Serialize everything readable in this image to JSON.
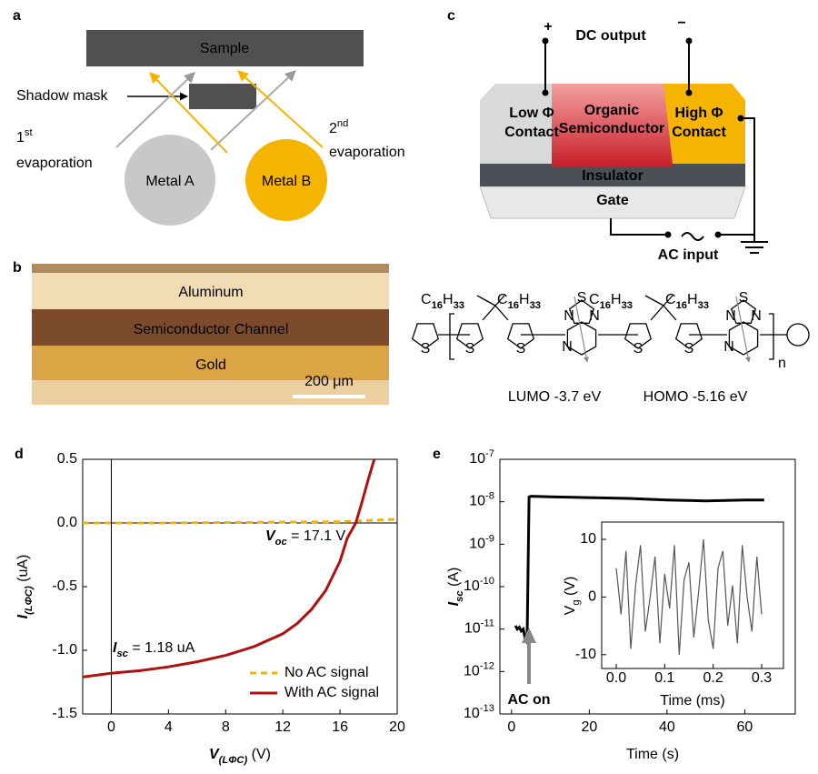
{
  "panel_a": {
    "letter": "a",
    "sample": "Sample",
    "shadow_mask": "Shadow mask",
    "first": {
      "number": "1",
      "suffix": "st",
      "text": "evaporation"
    },
    "second": {
      "number": "2",
      "suffix": "nd",
      "text": "evaporation"
    },
    "metal_a": "Metal A",
    "metal_b": "Metal B"
  },
  "panel_b": {
    "letter": "b",
    "top": "Aluminum",
    "middle": "Semiconductor  Channel",
    "bottom": "Gold",
    "scale_bar": "200 μm"
  },
  "panel_c": {
    "letter": "c",
    "plus": "+",
    "minus": "−",
    "dc_output": "DC output",
    "low_contact": [
      "Low Φ",
      "Contact"
    ],
    "organic": [
      "Organic",
      "Semiconductor"
    ],
    "high_contact": [
      "High Φ",
      "Contact"
    ],
    "insulator": "Insulator",
    "gate": "Gate",
    "ac_input": "AC input"
  },
  "molecule": {
    "side_chain": {
      "element1": "C",
      "count1": "16",
      "element2": "H",
      "count2": "33"
    },
    "sulfur": "S",
    "nitrogen": "N",
    "repeat": "n",
    "lumo": "LUMO -3.7 eV",
    "homo": "HOMO -5.16 eV"
  },
  "chart_data": [
    {
      "type": "line",
      "panel": "d",
      "xlabel": {
        "text": "V",
        "sub": "(LΦC)",
        "unit": " (V)"
      },
      "ylabel": {
        "text": "I",
        "sub": "(LΦC)",
        "unit": " (uA)"
      },
      "xlim": [
        -2,
        20
      ],
      "xticks": [
        0,
        4,
        8,
        12,
        16,
        20
      ],
      "ylim": [
        -1.5,
        0.5
      ],
      "yticks": [
        -1.5,
        {
          "value": -1,
          "label": "-1.0"
        },
        -0.5,
        {
          "value": 0,
          "label": "0.0"
        },
        0.5
      ],
      "zero_lines": true,
      "legend": "lower right",
      "annotations": [
        {
          "text": "V",
          "sub": "oc",
          "rest": " = 17.1 V"
        },
        {
          "text": "I",
          "sub": "sc",
          "rest": " = 1.18 uA"
        }
      ],
      "series": [
        {
          "name": "No AC signal",
          "color": "#f5b400",
          "dash": true,
          "x": [
            -2,
            4,
            10,
            16,
            18,
            20
          ],
          "values": [
            0,
            0,
            0.005,
            0.01,
            0.02,
            0.03
          ]
        },
        {
          "name": "With AC signal",
          "color": "#b01010",
          "dash": false,
          "x": [
            -2,
            0,
            2,
            4,
            6,
            8,
            10,
            12,
            13,
            14,
            15,
            16,
            16.5,
            17.1,
            17.5,
            18,
            18.4
          ],
          "values": [
            -1.21,
            -1.18,
            -1.16,
            -1.13,
            -1.09,
            -1.04,
            -0.97,
            -0.87,
            -0.79,
            -0.68,
            -0.53,
            -0.3,
            -0.12,
            0,
            0.15,
            0.35,
            0.5
          ]
        }
      ]
    },
    {
      "type": "line",
      "panel": "e",
      "log_y": true,
      "xlabel": "Time (s)",
      "ylabel": {
        "text": "I",
        "sub": "sc",
        "unit": " (A)"
      },
      "xlim": [
        -3,
        73
      ],
      "xticks": [
        0,
        20,
        40,
        60
      ],
      "ylim": [
        1e-13,
        1e-07
      ],
      "yticks": [
        {
          "value": 1e-13,
          "label": "10",
          "exponent": "-13"
        },
        {
          "value": 1e-12,
          "label": "10",
          "exponent": "-12"
        },
        {
          "value": 1e-11,
          "label": "10",
          "exponent": "-11"
        },
        {
          "value": 1e-10,
          "label": "10",
          "exponent": "-10"
        },
        {
          "value": 1e-09,
          "label": "10",
          "exponent": "-9"
        },
        {
          "value": 1e-08,
          "label": "10",
          "exponent": "-8"
        },
        {
          "value": 1e-07,
          "label": "10",
          "exponent": "-7"
        }
      ],
      "annotations": [
        {
          "text": "AC on"
        }
      ],
      "series": [
        {
          "name": "Isc",
          "color": "#000000",
          "dash": false,
          "x": [
            1,
            1.5,
            2,
            2.5,
            3,
            3.5,
            4,
            4.5,
            5,
            10,
            20,
            30,
            40,
            50,
            60,
            65
          ],
          "values": [
            1.2e-11,
            1e-11,
            1.1e-11,
            9e-12,
            1e-11,
            6e-12,
            5e-12,
            1.3e-08,
            1.35e-08,
            1.3e-08,
            1.25e-08,
            1.2e-08,
            1.1e-08,
            1.05e-08,
            1.1e-08,
            1.1e-08
          ]
        }
      ]
    },
    {
      "type": "line",
      "panel": "inset",
      "xlabel": "Time (ms)",
      "ylabel": {
        "text": "V",
        "sub": "g",
        "unit": " (V)"
      },
      "xlim": [
        -0.03,
        0.345
      ],
      "xticks": [
        {
          "value": 0,
          "label": "0.0"
        },
        0.1,
        0.2,
        0.3
      ],
      "ylim": [
        -12.4,
        13
      ],
      "yticks": [
        -10,
        0,
        10
      ],
      "series": [
        {
          "name": "Vg",
          "color": "#555555",
          "dash": false,
          "x": [
            0,
            0.01,
            0.02,
            0.03,
            0.04,
            0.05,
            0.06,
            0.07,
            0.08,
            0.09,
            0.1,
            0.11,
            0.12,
            0.13,
            0.14,
            0.15,
            0.16,
            0.17,
            0.18,
            0.19,
            0.2,
            0.21,
            0.22,
            0.23,
            0.24,
            0.25,
            0.26,
            0.27,
            0.28,
            0.29,
            0.3
          ],
          "values": [
            5,
            -3,
            8,
            -9,
            2,
            9,
            -6,
            0,
            7,
            -8,
            4,
            -2,
            9,
            -10,
            3,
            6,
            -7,
            1,
            10,
            -4,
            -9,
            5,
            8,
            -5,
            2,
            -8,
            9,
            0,
            -6,
            7,
            -3
          ]
        }
      ]
    }
  ]
}
